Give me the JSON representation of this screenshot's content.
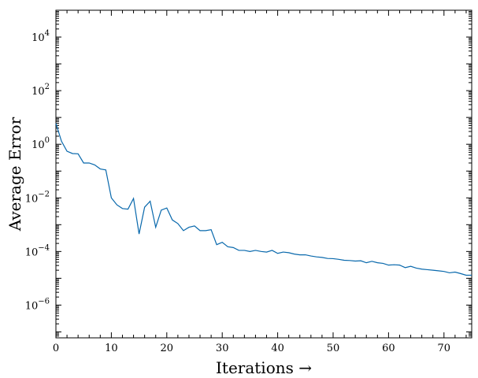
{
  "chart_data": {
    "type": "line",
    "title": "",
    "xlabel": "Iterations →",
    "ylabel": "Average Error",
    "xlim": [
      0,
      75
    ],
    "ylim": [
      6e-08,
      100000.0
    ],
    "yscale": "log",
    "grid": false,
    "legend": "none",
    "line_color": "#0868ac",
    "x_ticks": [
      0,
      10,
      20,
      30,
      40,
      50,
      60,
      70
    ],
    "y_ticks": [
      {
        "value": 1e-06,
        "base": "10",
        "exp": "−6"
      },
      {
        "value": 0.0001,
        "base": "10",
        "exp": "−4"
      },
      {
        "value": 0.01,
        "base": "10",
        "exp": "−2"
      },
      {
        "value": 1,
        "base": "10",
        "exp": "0"
      },
      {
        "value": 100,
        "base": "10",
        "exp": "2"
      },
      {
        "value": 10000,
        "base": "10",
        "exp": "4"
      }
    ],
    "series": [
      {
        "x": [
          0,
          1,
          2,
          3,
          4,
          5,
          6,
          7,
          8,
          9,
          10,
          11,
          12,
          13,
          14,
          15,
          16,
          17,
          18,
          19,
          20,
          21,
          22,
          23,
          24,
          25,
          26,
          27,
          28,
          29,
          30,
          31,
          32,
          33,
          34,
          35,
          36,
          37,
          38,
          39,
          40,
          41,
          42,
          43,
          44,
          45,
          46,
          47,
          48,
          49,
          50,
          51,
          52,
          53,
          54,
          55,
          56,
          57,
          58,
          59,
          60,
          61,
          62,
          63,
          64,
          65,
          66,
          67,
          68,
          69,
          70,
          71,
          72,
          73,
          74,
          75
        ],
        "y": [
          6.0,
          1.3,
          0.55,
          0.45,
          0.44,
          0.2,
          0.2,
          0.17,
          0.12,
          0.11,
          0.01,
          0.0055,
          0.004,
          0.0038,
          0.0095,
          0.00045,
          0.0045,
          0.0075,
          0.0008,
          0.0035,
          0.0042,
          0.0015,
          0.0011,
          0.0006,
          0.0008,
          0.0009,
          0.0006,
          0.0006,
          0.00065,
          0.00018,
          0.00022,
          0.00015,
          0.00014,
          0.00011,
          0.00011,
          0.0001,
          0.00011,
          0.0001,
          9.5e-05,
          0.00011,
          8.5e-05,
          9.5e-05,
          9e-05,
          8e-05,
          7.5e-05,
          7.5e-05,
          6.8e-05,
          6.3e-05,
          6e-05,
          5.5e-05,
          5.4e-05,
          5.1e-05,
          4.7e-05,
          4.6e-05,
          4.4e-05,
          4.5e-05,
          3.8e-05,
          4.3e-05,
          3.8e-05,
          3.6e-05,
          3.1e-05,
          3.2e-05,
          3.1e-05,
          2.5e-05,
          2.8e-05,
          2.4e-05,
          2.2e-05,
          2.1e-05,
          2e-05,
          1.9e-05,
          1.8e-05,
          1.6e-05,
          1.7e-05,
          1.5e-05,
          1.3e-05,
          1.3e-05
        ]
      }
    ]
  }
}
